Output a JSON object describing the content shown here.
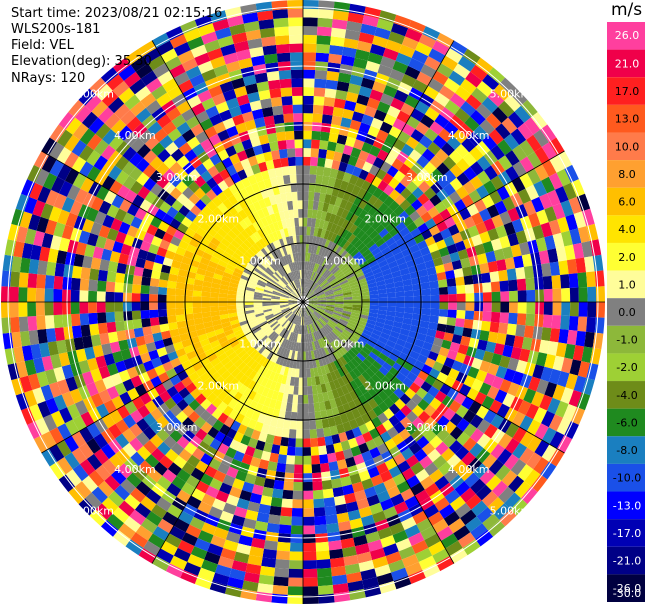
{
  "header": {
    "start_time": "Start time: 2023/08/21 02:15:16",
    "instrument": "WLS200s-181",
    "field": "Field: VEL",
    "elevation": "Elevation(deg): 35.30",
    "nrays": "NRays: 120"
  },
  "colorbar": {
    "unit": "m/s",
    "labels": [
      "26.0",
      "21.0",
      "17.0",
      "13.0",
      "10.0",
      "8.0",
      "6.0",
      "4.0",
      "2.0",
      "1.0",
      "0.0",
      "-1.0",
      "-2.0",
      "-4.0",
      "-6.0",
      "-8.0",
      "-10.0",
      "-13.0",
      "-17.0",
      "-21.0",
      "-26.0",
      "-30.0"
    ],
    "colors": [
      "#ff3f9e",
      "#f0004a",
      "#ff2020",
      "#ff5a1e",
      "#ff7b4a",
      "#ffa030",
      "#ffbf00",
      "#ffe400",
      "#ffff33",
      "#fffd9a",
      "#808080",
      "#8db83a",
      "#9ed035",
      "#6e8c19",
      "#1f8a1f",
      "#1a7fc0",
      "#1a50e8",
      "#0000ff",
      "#0000b4",
      "#000086",
      "#000040"
    ]
  },
  "chart_data": {
    "type": "ppi",
    "field": "VEL",
    "units": "m/s",
    "range_rings_km": [
      1.0,
      2.0,
      3.0,
      4.0,
      5.0
    ],
    "ring_labels": [
      "1.00km",
      "2.00km",
      "3.00km",
      "4.00km",
      "5.00km"
    ],
    "nrays": 120,
    "vmin": -30.0,
    "vmax": 30.0
  }
}
